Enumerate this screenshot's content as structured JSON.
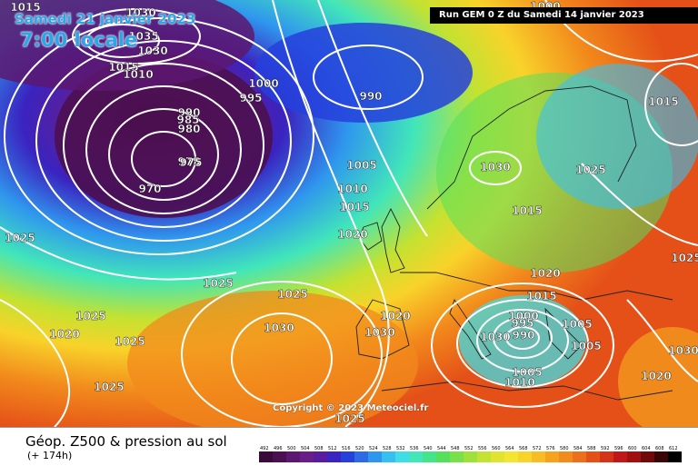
{
  "header": {
    "date": "Samedi 21 janvier 2023",
    "time": "7:00 locale",
    "run": "Run GEM 0 Z du Samedi 14 janvier 2023"
  },
  "copyright": "Copyright © 2023 Meteociel.fr",
  "legend": {
    "title": "Géop. Z500 & pression au sol",
    "subtitle": "(+ 174h)",
    "scale_values": [
      "492",
      "496",
      "500",
      "504",
      "508",
      "512",
      "516",
      "520",
      "524",
      "528",
      "532",
      "536",
      "540",
      "544",
      "548",
      "552",
      "556",
      "560",
      "564",
      "568",
      "572",
      "576",
      "580",
      "584",
      "588",
      "592",
      "596",
      "600",
      "604",
      "608",
      "612"
    ],
    "scale_colors": [
      "#3a0a3a",
      "#4b1050",
      "#5c1870",
      "#6a1f88",
      "#5a1ba0",
      "#3a23c0",
      "#2640dc",
      "#2c6ae6",
      "#2f96ee",
      "#38bff2",
      "#3fdde6",
      "#42e6b9",
      "#45e38a",
      "#55e05c",
      "#79e04a",
      "#9fe03b",
      "#c3e231",
      "#e0e330",
      "#f4e530",
      "#f8d32a",
      "#f8bc24",
      "#f6a21f",
      "#f28a1c",
      "#ec6f1b",
      "#e45018",
      "#d43318",
      "#c01818",
      "#a01010",
      "#700a0a",
      "#3a0505",
      "#000000"
    ]
  },
  "pressure_labels": [
    "1030",
    "1035",
    "1030",
    "1015",
    "1010",
    "1000",
    "995",
    "990",
    "990",
    "985",
    "980",
    "975",
    "975",
    "970",
    "1005",
    "1010",
    "1015",
    "1020",
    "1025",
    "1025",
    "1025",
    "1030",
    "1025",
    "1025",
    "1020",
    "1025",
    "1030",
    "1025",
    "1015",
    "1020",
    "1030",
    "1030",
    "1025",
    "1015",
    "1020",
    "1015",
    "1000",
    "995",
    "990",
    "1005",
    "1005",
    "1005",
    "1010",
    "1020",
    "1030",
    "1025",
    "1000",
    "1015"
  ],
  "colors": {
    "contour": "#ffffff",
    "title_blue": "#29a8e8"
  }
}
